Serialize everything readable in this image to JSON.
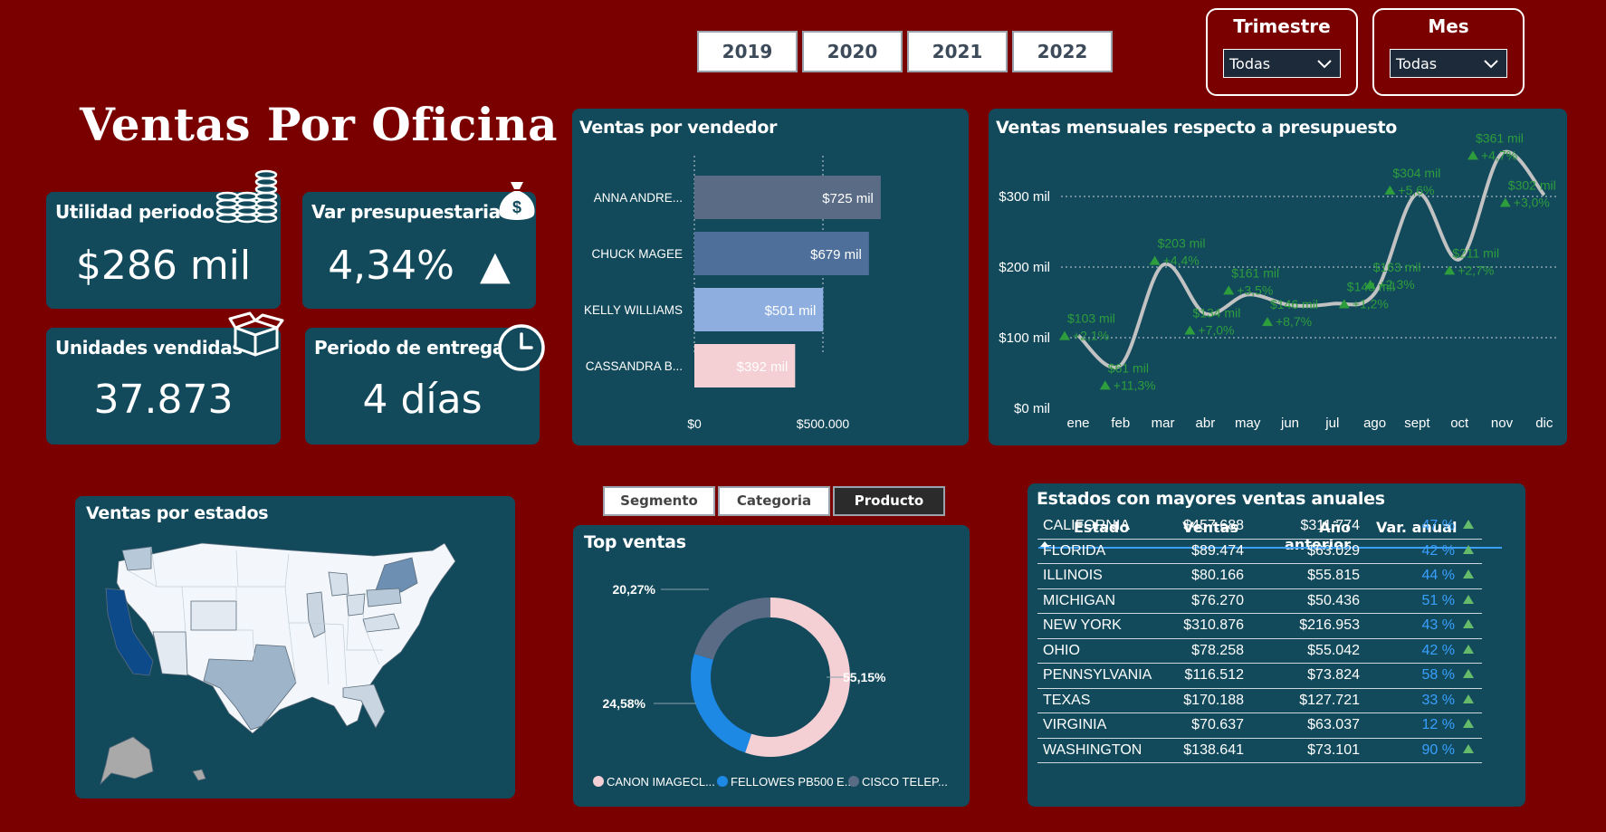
{
  "page_title": "Ventas Por Oficina",
  "years": [
    "2019",
    "2020",
    "2021",
    "2022"
  ],
  "filters": [
    {
      "label": "Trimestre",
      "value": "Todas"
    },
    {
      "label": "Mes",
      "value": "Todas"
    }
  ],
  "kpis": {
    "utilidad": {
      "title": "Utilidad periodo",
      "value": "$286 mil"
    },
    "var_presup": {
      "title": "Var presupuestaria",
      "value": "4,34%",
      "arrow": "▲"
    },
    "unidades": {
      "title": "Unidades vendidas",
      "value": "37.873"
    },
    "entrega": {
      "title": "Periodo de entrega",
      "value": "4 días"
    }
  },
  "icons": [
    "coins-stack-icon",
    "money-bag-icon",
    "box-icon",
    "clock-icon",
    "triangle-up-icon",
    "chevron-down-icon",
    "sort-up-icon"
  ],
  "ventas_vendedor": {
    "title": "Ventas por vendedor",
    "x_ticks": [
      "$0",
      "$500.000"
    ]
  },
  "ventas_mensuales": {
    "title": "Ventas mensuales respecto a presupuesto",
    "y_ticks": [
      "$0 mil",
      "$100 mil",
      "$200 mil",
      "$300 mil"
    ]
  },
  "ventas_estados": {
    "title": "Ventas por estados"
  },
  "segment_buttons": [
    "Segmento",
    "Categoria",
    "Producto"
  ],
  "top_ventas": {
    "title": "Top ventas"
  },
  "estados_table": {
    "title": "Estados con mayores ventas anuales",
    "columns": [
      "Estado",
      "Ventas",
      "Año anterior",
      "Var. anual"
    ],
    "rows": [
      [
        "CALIFORNIA",
        "$457.688",
        "$311.774",
        "47 %"
      ],
      [
        "FLORIDA",
        "$89.474",
        "$63.029",
        "42 %"
      ],
      [
        "ILLINOIS",
        "$80.166",
        "$55.815",
        "44 %"
      ],
      [
        "MICHIGAN",
        "$76.270",
        "$50.436",
        "51 %"
      ],
      [
        "NEW YORK",
        "$310.876",
        "$216.953",
        "43 %"
      ],
      [
        "OHIO",
        "$78.258",
        "$55.042",
        "42 %"
      ],
      [
        "PENNSYLVANIA",
        "$116.512",
        "$73.824",
        "58 %"
      ],
      [
        "TEXAS",
        "$170.188",
        "$127.721",
        "33 %"
      ],
      [
        "VIRGINIA",
        "$70.637",
        "$63.037",
        "12 %"
      ],
      [
        "WASHINGTON",
        "$138.641",
        "$73.101",
        "90 %"
      ]
    ]
  },
  "colors": {
    "background": "#7a0000",
    "panel": "#124a5c",
    "positive": "#4caf50",
    "pct": "#3aa0ff"
  },
  "chart_data": [
    {
      "type": "bar",
      "orientation": "horizontal",
      "title": "Ventas por vendedor",
      "categories": [
        "ANNA ANDRE...",
        "CHUCK MAGEE",
        "KELLY WILLIAMS",
        "CASSANDRA B..."
      ],
      "values": [
        725000,
        679000,
        501000,
        392000
      ],
      "labels": [
        "$725 mil",
        "$679 mil",
        "$501 mil",
        "$392 mil"
      ],
      "colors": [
        "#5a6b85",
        "#4e6f99",
        "#8eaedf",
        "#f4cfd3"
      ],
      "xlim": [
        0,
        900000
      ],
      "x_ticks": [
        "$0",
        "$500.000"
      ],
      "grid": true
    },
    {
      "type": "line",
      "title": "Ventas mensuales respecto a presupuesto",
      "categories": [
        "ene",
        "feb",
        "mar",
        "abr",
        "may",
        "jun",
        "jul",
        "ago",
        "sept",
        "oct",
        "nov",
        "dic"
      ],
      "values": [
        103,
        61,
        203,
        134,
        161,
        146,
        148,
        163,
        304,
        211,
        361,
        302
      ],
      "labels": [
        "$103 mil",
        "$61 mil",
        "$203 mil",
        "$134 mil",
        "$161 mil",
        "$146 mil",
        "$148 mil",
        "$163 mil",
        "$304 mil",
        "$211 mil",
        "$361 mil",
        "$302 mil"
      ],
      "variations": [
        "+2,1%",
        "+11,3%",
        "+4,4%",
        "+7,0%",
        "+3,5%",
        "+8,7%",
        "+1,2%",
        "+2,3%",
        "+5,6%",
        "+2,7%",
        "+4,7%",
        "+3,0%"
      ],
      "ylim": [
        0,
        380
      ],
      "y_ticks": [
        "$0 mil",
        "$100 mil",
        "$200 mil",
        "$300 mil"
      ],
      "grid": true
    },
    {
      "type": "pie",
      "title": "Top ventas",
      "donut": true,
      "series": [
        {
          "name": "CANON IMAGECL...",
          "value": 55.15,
          "label": "55,15%",
          "color": "#f4cfd3"
        },
        {
          "name": "FELLOWES PB500 E...",
          "value": 24.58,
          "label": "24,58%",
          "color": "#1e88e5"
        },
        {
          "name": "CISCO TELEP...",
          "value": 20.27,
          "label": "20,27%",
          "color": "#5a6b85"
        }
      ],
      "legend": "bottom"
    }
  ]
}
